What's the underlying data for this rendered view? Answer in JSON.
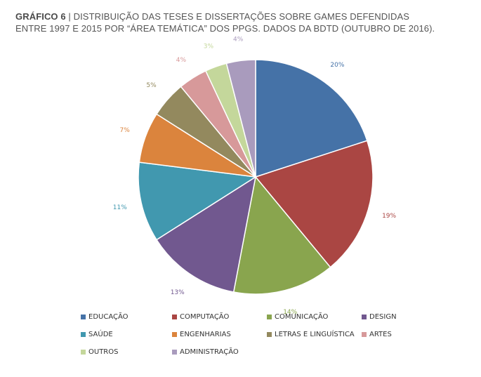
{
  "header": {
    "title_bold": "GRÁFICO 6",
    "title_sep": " | ",
    "title_line1": "DISTRIBUIÇÃO DAS TESES E DISSERTAÇÕES SOBRE GAMES DEFENDIDAS",
    "title_line2": "ENTRE 1997 E 2015 POR “ÁREA TEMÁTICA” DOS PPGS. DADOS DA BDTD (OUTUBRO DE 2016)."
  },
  "chart_data": {
    "type": "pie",
    "categories": [
      "EDUCAÇÃO",
      "COMPUTAÇÃO",
      "COMUNICAÇÃO",
      "DESIGN",
      "SAÚDE",
      "ENGENHARIAS",
      "LETRAS E LINGUÍSTICA",
      "ARTES",
      "OUTROS",
      "ADMINISTRAÇÃO"
    ],
    "values": [
      20,
      19,
      14,
      13,
      11,
      7,
      5,
      4,
      3,
      4
    ],
    "labels": [
      "20%",
      "19%",
      "14%",
      "13%",
      "11%",
      "7%",
      "5%",
      "4%",
      "3%",
      "4%"
    ],
    "colors": [
      "#4572A7",
      "#AA4643",
      "#89A54E",
      "#71588F",
      "#4198AF",
      "#DB843D",
      "#93895E",
      "#D7999A",
      "#C4D79B",
      "#A99BBD"
    ],
    "label_colors": [
      "#4572A7",
      "#AA4643",
      "#89A54E",
      "#71588F",
      "#4198AF",
      "#DB843D",
      "#93895E",
      "#D7999A",
      "#C4D79B",
      "#A99BBD"
    ],
    "legend_position": "bottom"
  }
}
